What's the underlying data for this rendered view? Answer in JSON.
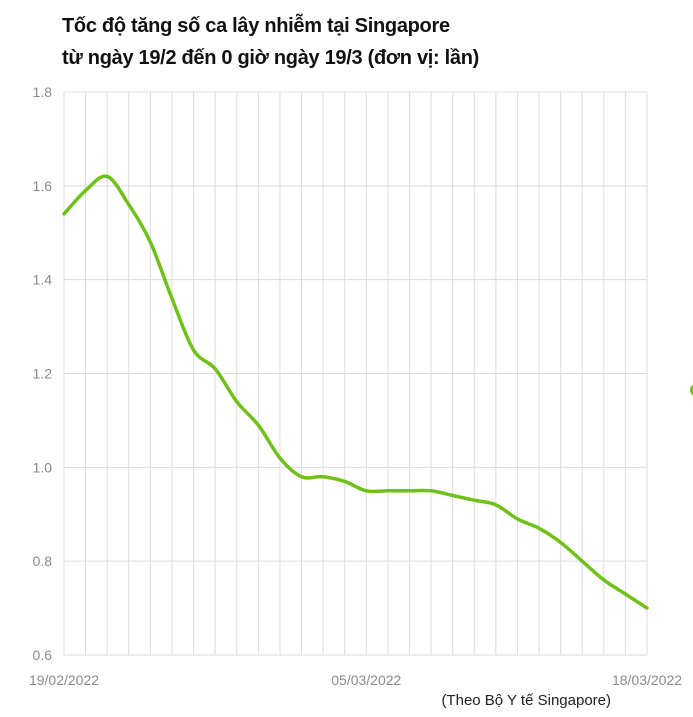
{
  "title_line1": "Tốc độ tăng số ca lây nhiễm tại Singapore",
  "title_line2": "từ ngày 19/2 đến 0 giờ ngày 19/3 (đơn vị: lần)",
  "source": "(Theo Bộ Y tế Singapore)",
  "chart_data": {
    "type": "line",
    "title": "Tốc độ tăng số ca lây nhiễm tại Singapore từ ngày 19/2 đến 0 giờ ngày 19/3 (đơn vị: lần)",
    "xlabel": "",
    "ylabel": "",
    "ylim": [
      0.6,
      1.8
    ],
    "y_ticks": [
      "0.6",
      "0.8",
      "1.0",
      "1.2",
      "1.4",
      "1.6",
      "1.8"
    ],
    "x_tick_labels": [
      "19/02/2022",
      "05/03/2022",
      "18/03/2022"
    ],
    "x": [
      "19/02",
      "20/02",
      "21/02",
      "22/02",
      "23/02",
      "24/02",
      "25/02",
      "26/02",
      "27/02",
      "28/02",
      "01/03",
      "02/03",
      "03/03",
      "04/03",
      "05/03",
      "06/03",
      "07/03",
      "08/03",
      "09/03",
      "10/03",
      "11/03",
      "12/03",
      "13/03",
      "14/03",
      "15/03",
      "16/03",
      "17/03",
      "18/03"
    ],
    "series": [
      {
        "values": [
          1.54,
          1.59,
          1.62,
          1.56,
          1.48,
          1.36,
          1.25,
          1.21,
          1.14,
          1.09,
          1.02,
          0.98,
          0.98,
          0.97,
          0.95,
          0.95,
          0.95,
          0.95,
          0.94,
          0.93,
          0.92,
          0.89,
          0.87,
          0.84,
          0.8,
          0.76,
          0.73,
          0.7
        ],
        "color": "#6fc11a"
      }
    ],
    "grid": true,
    "legend": "none",
    "colors": {
      "line": "#6fc11a",
      "grid": "#dcdcdc",
      "axis_text": "#8a8a8a"
    }
  }
}
